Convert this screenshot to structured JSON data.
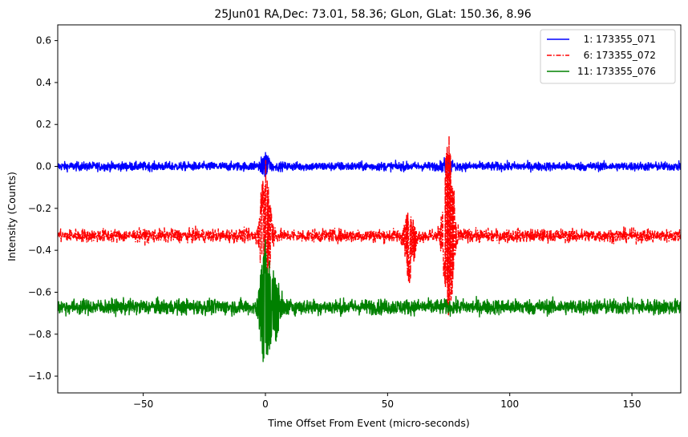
{
  "chart_data": {
    "type": "line",
    "title": "25Jun01 RA,Dec:   73.01,  58.36; GLon, GLat:  150.36,   8.96",
    "xlabel": "Time Offset From Event (micro-seconds)",
    "ylabel": "Intensity (Counts)",
    "xlim": [
      -85,
      170
    ],
    "ylim": [
      -1.08,
      0.675
    ],
    "xticks": [
      -50,
      0,
      50,
      100,
      150
    ],
    "xtick_labels": [
      "−50",
      "0",
      "50",
      "100",
      "150"
    ],
    "yticks": [
      0.6,
      0.4,
      0.2,
      0.0,
      -0.2,
      -0.4,
      -0.6,
      -0.8,
      -1.0
    ],
    "ytick_labels": [
      "0.6",
      "0.4",
      "0.2",
      "0.0",
      "−0.2",
      "−0.4",
      "−0.6",
      "−0.8",
      "−1.0"
    ],
    "legend_position": "top-right",
    "series": [
      {
        "name": "1: 173355_071",
        "label": "  1: 173355_071",
        "color": "#0000ff",
        "dash": "solid",
        "baseline": 0.0,
        "noise": 0.02,
        "features": [
          {
            "x": 0,
            "peak": 0.05,
            "trough": -0.04
          },
          {
            "x": 75,
            "peak": 0.04,
            "trough": -0.03
          }
        ]
      },
      {
        "name": "6: 173355_072",
        "label": "  6: 173355_072",
        "color": "#ff0000",
        "dash": "dashdot",
        "baseline": -0.33,
        "noise": 0.03,
        "features": [
          {
            "x": 0,
            "peak": 0.02,
            "trough": -0.6
          },
          {
            "x": 59,
            "peak": -0.22,
            "trough": -0.58
          },
          {
            "x": 75,
            "peak": 0.18,
            "trough": -0.77
          }
        ]
      },
      {
        "name": "11: 173355_076",
        "label": "11: 173355_076",
        "color": "#008000",
        "dash": "solid",
        "baseline": -0.67,
        "noise": 0.035,
        "features": [
          {
            "x": 0,
            "peak": -0.34,
            "trough": -0.99
          },
          {
            "x": 4,
            "peak": -0.52,
            "trough": -0.84
          }
        ]
      }
    ]
  }
}
